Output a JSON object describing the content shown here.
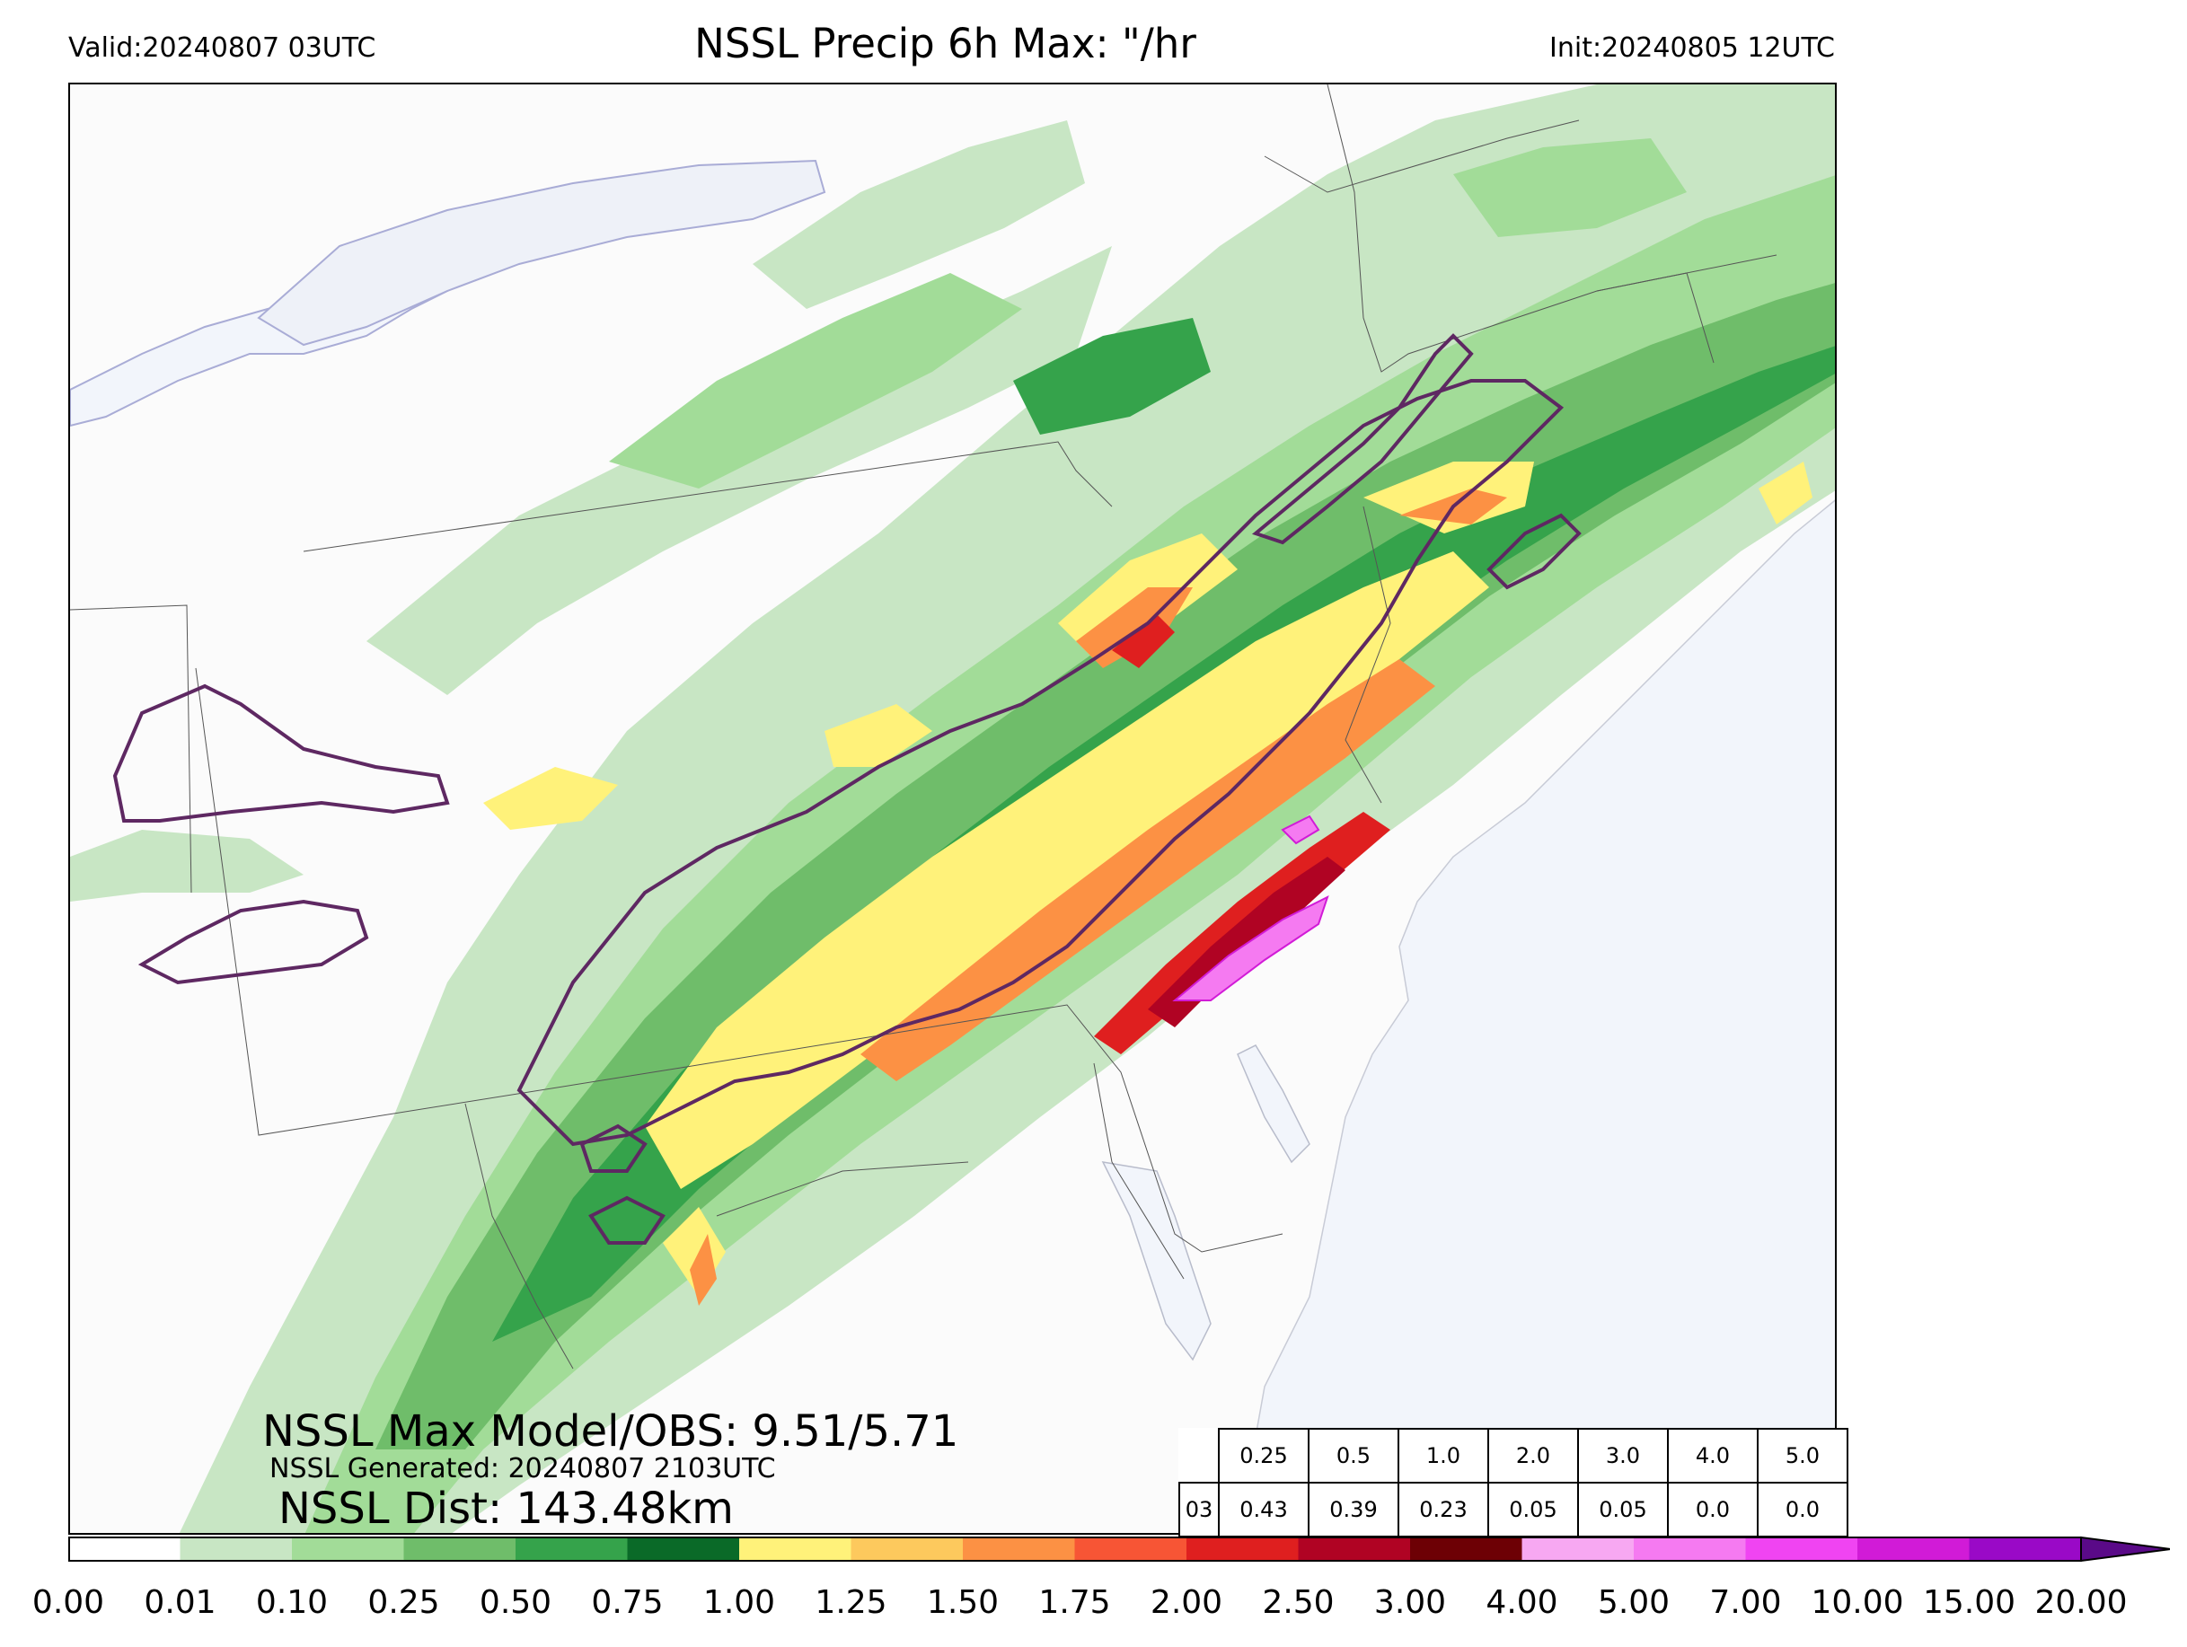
{
  "header": {
    "valid": "Valid:20240807 03UTC",
    "title": "NSSL Precip 6h Max: \"/hr",
    "init": "Init:20240805 12UTC"
  },
  "stats": {
    "max_model_obs": "NSSL Max Model/OBS: 9.51/5.71",
    "generated": "NSSL Generated: 20240807 2103UTC",
    "distance": "NSSL Dist: 143.48km"
  },
  "threshold_table": {
    "headers": [
      "0.25",
      "0.5",
      "1.0",
      "2.0",
      "3.0",
      "4.0",
      "5.0"
    ],
    "row_label": "03",
    "values": [
      "0.43",
      "0.39",
      "0.23",
      "0.05",
      "0.05",
      "0.0",
      "0.0"
    ]
  },
  "colorbar": {
    "ticks": [
      "0.00",
      "0.01",
      "0.10",
      "0.25",
      "0.50",
      "0.75",
      "1.00",
      "1.25",
      "1.50",
      "1.75",
      "2.00",
      "2.50",
      "3.00",
      "4.00",
      "5.00",
      "7.00",
      "10.00",
      "15.00",
      "20.00"
    ],
    "colors": [
      "#ffffff",
      "#c8e6c4",
      "#a2dc98",
      "#6fbd6a",
      "#35a34b",
      "#0a6a28",
      "#fff27a",
      "#fdc95d",
      "#fc9144",
      "#f75535",
      "#df1f1f",
      "#b00323",
      "#6d0005",
      "#f7a8f2",
      "#f57af1",
      "#f044f2",
      "#d11bd7",
      "#9a09c7"
    ],
    "extend_color": "#5a0a88"
  },
  "map": {
    "water_color": "#f2f5fb",
    "obs_contour_color": "#5e2862",
    "layers": {
      "light_green": "#c8e6c4",
      "green": "#a2dc98",
      "mid_green": "#6fbd6a",
      "dark_green": "#35a34b",
      "yellow": "#fff27a",
      "orange": "#fc9144",
      "red": "#df1f1f",
      "dark_red": "#b00323",
      "pink": "#f57af1",
      "violet": "#d11bd7"
    }
  }
}
